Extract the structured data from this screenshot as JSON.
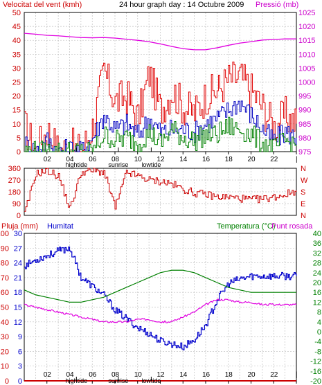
{
  "header": {
    "wind_label": "Velocitat del vent (kmh)",
    "title": "24 hour graph day : 14 Octubre 2009",
    "pressure_label": "Pressió (mb)"
  },
  "footer_left": {
    "rain_label": "Pluja (mm)",
    "humidity_label": "Humitat"
  },
  "footer_right": {
    "temp_label": "Temperatura (°C)",
    "dew_label": "Punt rosada"
  },
  "colors": {
    "wind": "#e00000",
    "wind_avg": "#0000c0",
    "gust_green": "#008000",
    "pressure": "#e000e0",
    "direction": "#cc0000",
    "humidity": "#0000cc",
    "temperature": "#008000",
    "dew": "#e000e0",
    "rain": "#cc0000",
    "grid": "#c0c0c0",
    "frame": "#000000"
  },
  "x_axis": {
    "ticks": [
      "02",
      "04",
      "06",
      "08",
      "10",
      "12",
      "14",
      "16",
      "18",
      "20",
      "22",
      "|"
    ],
    "events_top": [
      "hightide",
      "sunrise",
      "lowtide"
    ],
    "events_bottom": [
      "hightide",
      "sunrise",
      "lowtide"
    ]
  },
  "chart_data": [
    {
      "type": "line",
      "title": "24 hour graph day : 14 Octubre 2009",
      "ylabel": "Velocitat del vent (kmh)",
      "y2label": "Pressió (mb)",
      "ylim": [
        0,
        50
      ],
      "y2lim": [
        975,
        1025
      ],
      "yticks": [
        0,
        5,
        10,
        15,
        20,
        25,
        30,
        35,
        40,
        45,
        50
      ],
      "y2ticks": [
        975,
        980,
        985,
        990,
        995,
        1000,
        1005,
        1010,
        1015,
        1020,
        1025
      ],
      "x": [
        0,
        1,
        2,
        3,
        4,
        5,
        6,
        7,
        8,
        9,
        10,
        11,
        12,
        13,
        14,
        15,
        16,
        17,
        18,
        19,
        20,
        21,
        22,
        23,
        24
      ],
      "series": [
        {
          "name": "gust",
          "axis": "left",
          "values": [
            9,
            0,
            8,
            0,
            2,
            0,
            9,
            29,
            18,
            20,
            12,
            28,
            15,
            22,
            16,
            14,
            20,
            22,
            26,
            27,
            22,
            16,
            9,
            13,
            10
          ]
        },
        {
          "name": "average",
          "axis": "left",
          "values": [
            3,
            0,
            4,
            0,
            1,
            0,
            5,
            13,
            8,
            10,
            6,
            12,
            7,
            8,
            8,
            7,
            10,
            12,
            15,
            18,
            13,
            8,
            4,
            7,
            5
          ]
        },
        {
          "name": "gust-low",
          "axis": "left",
          "values": [
            0,
            0,
            0,
            0,
            0,
            0,
            0,
            6,
            4,
            5,
            3,
            7,
            3,
            8,
            5,
            4,
            6,
            6,
            9,
            8,
            6,
            3,
            1,
            4,
            2
          ]
        },
        {
          "name": "pressure",
          "axis": "right",
          "values": [
            1017.5,
            1017.2,
            1016.8,
            1016.6,
            1016.3,
            1016.0,
            1015.9,
            1016.0,
            1015.8,
            1015.4,
            1015.0,
            1014.5,
            1013.7,
            1012.8,
            1012.0,
            1011.6,
            1011.6,
            1012.3,
            1013.2,
            1014.0,
            1014.5,
            1015.1,
            1015.3,
            1015.5,
            1015.5
          ]
        }
      ]
    },
    {
      "type": "line",
      "ylabel_right": [
        "N",
        "W",
        "S",
        "E",
        "N"
      ],
      "ylim": [
        0,
        360
      ],
      "yticks": [
        0,
        90,
        180,
        270,
        360
      ],
      "x": [
        0,
        1,
        2,
        3,
        4,
        5,
        6,
        7,
        8,
        9,
        10,
        11,
        12,
        13,
        14,
        15,
        16,
        17,
        18,
        19,
        20,
        21,
        22,
        23,
        24
      ],
      "series": [
        {
          "name": "direction",
          "values": [
            10,
            320,
            340,
            300,
            50,
            330,
            340,
            330,
            60,
            330,
            300,
            270,
            260,
            240,
            200,
            170,
            160,
            140,
            140,
            130,
            120,
            125,
            140,
            160,
            190
          ]
        }
      ]
    },
    {
      "type": "line",
      "ylabel_left1": "Pluja (mm)",
      "ylabel_left2": "Humitat",
      "ylabel_right": "Temperatura (°C)Punt rosada",
      "ylim_rain": [
        0,
        100
      ],
      "ylim_humidity": [
        0,
        30
      ],
      "ylim_temp": [
        -20,
        40
      ],
      "yticks_rain": [
        0,
        10,
        20,
        30,
        40,
        50,
        60,
        70,
        80,
        90,
        100
      ],
      "yticks_humidity": [
        0,
        3,
        6,
        9,
        12,
        15,
        18,
        21,
        24,
        27,
        30
      ],
      "yticks_temp": [
        -20,
        -16,
        -12,
        -8,
        -4,
        0,
        4,
        8,
        12,
        16,
        20,
        24,
        28,
        32,
        36,
        40
      ],
      "x": [
        0,
        1,
        2,
        3,
        4,
        5,
        6,
        7,
        8,
        9,
        10,
        11,
        12,
        13,
        14,
        15,
        16,
        17,
        18,
        19,
        20,
        21,
        22,
        23,
        24
      ],
      "series": [
        {
          "name": "humidity",
          "axis": "rain",
          "values": [
            78,
            82,
            85,
            88,
            90,
            70,
            64,
            58,
            48,
            42,
            36,
            32,
            27,
            25,
            23,
            28,
            38,
            55,
            66,
            69,
            71,
            71,
            71,
            71,
            71
          ]
        },
        {
          "name": "temperature",
          "axis": "temp",
          "values": [
            17,
            15,
            14,
            13,
            12,
            12,
            13,
            14,
            16,
            18,
            20,
            22,
            24,
            25,
            25,
            24,
            22,
            20,
            18,
            17,
            16,
            16,
            16,
            16,
            16
          ]
        },
        {
          "name": "dew-point",
          "axis": "temp",
          "values": [
            11,
            10,
            9,
            8,
            7,
            6,
            5,
            4,
            4,
            4,
            5,
            5,
            4,
            4,
            6,
            8,
            11,
            13,
            13,
            12,
            12,
            11,
            11,
            11,
            11
          ]
        },
        {
          "name": "rain",
          "axis": "rain",
          "values": [
            0,
            0,
            0,
            0,
            0,
            0,
            0,
            0,
            0,
            0,
            0,
            0,
            0,
            0,
            0,
            0,
            0,
            0,
            0,
            0,
            0,
            0,
            0,
            0,
            0
          ]
        }
      ]
    }
  ]
}
